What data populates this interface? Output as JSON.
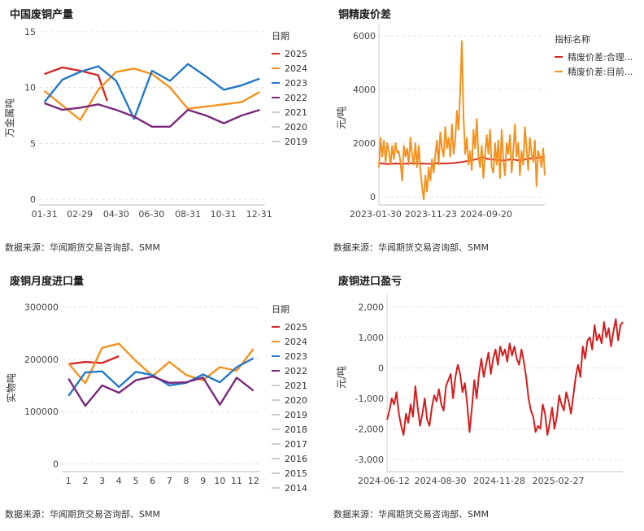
{
  "colors": {
    "c2025": "#d42a2a",
    "c2024": "#f3921f",
    "c2023": "#2478c8",
    "c2022": "#7b2a7b",
    "cOld": "#cccccc",
    "grid": "#e3e3e3",
    "red": "#d21f1f"
  },
  "source_text": "数据来源：华闻期货交易咨询部、SMM",
  "chart_data": [
    {
      "type": "line",
      "title": "中国废铜产量",
      "ylabel": "万金属吨",
      "ylim": [
        -0.5,
        15.5
      ],
      "yticks": [
        "15",
        "10",
        "5",
        "0"
      ],
      "ytick_values": [
        15,
        10,
        5,
        0
      ],
      "xtick_labels": [
        "01-31",
        "02-29",
        "04-30",
        "06-30",
        "08-31",
        "10-31",
        "12-31"
      ],
      "xtick_positions": [
        1,
        2.97,
        5,
        6.97,
        9,
        10.97,
        12.97
      ],
      "xlim": [
        0.7,
        13.3
      ],
      "legend_title": "日期",
      "legend": [
        "2025",
        "2024",
        "2023",
        "2022",
        "2021",
        "2020",
        "2019"
      ],
      "series": [
        {
          "name": "2025",
          "x": [
            1,
            2,
            3,
            4,
            4.5
          ],
          "values": [
            11.2,
            11.8,
            11.5,
            11.1,
            8.8
          ]
        },
        {
          "name": "2024",
          "x": [
            1,
            2,
            3,
            4,
            5,
            6,
            7,
            8,
            9,
            10,
            11,
            12,
            13
          ],
          "values": [
            9.7,
            8.4,
            7.1,
            9.8,
            11.4,
            11.7,
            11.2,
            10,
            8.1,
            8.3,
            8.5,
            8.7,
            9.6
          ]
        },
        {
          "name": "2023",
          "x": [
            1,
            2,
            3,
            4,
            5,
            6,
            7,
            8,
            9,
            10,
            11,
            12,
            13
          ],
          "values": [
            8.7,
            10.7,
            11.4,
            11.9,
            10.6,
            7.2,
            11.5,
            10.6,
            12.1,
            11,
            9.8,
            10.2,
            10.8
          ]
        },
        {
          "name": "2022",
          "x": [
            1,
            2,
            3,
            4,
            5,
            6,
            7,
            8,
            9,
            10,
            11,
            12,
            13
          ],
          "values": [
            8.6,
            8,
            8.2,
            8.5,
            8,
            7.4,
            6.5,
            6.5,
            8,
            7.5,
            6.8,
            7.5,
            8
          ]
        }
      ]
    },
    {
      "type": "line",
      "title": "铜精废价差",
      "ylabel": "元/吨",
      "ylim": [
        -300,
        6300
      ],
      "yticks": [
        "6000",
        "4000",
        "2000",
        "0"
      ],
      "ytick_values": [
        6000,
        4000,
        2000,
        0
      ],
      "xtick_labels": [
        "2023-01-30",
        "2023-11-23",
        "2024-09-20"
      ],
      "xtick_positions": [
        0,
        0.333,
        0.667
      ],
      "legend_title": "指标名称",
      "legend": [
        "精废价差:合理...",
        "精废价差:目前..."
      ],
      "series": [
        {
          "name": "精废价差:合理价差",
          "x": [
            0,
            0.05,
            0.1,
            0.15,
            0.2,
            0.25,
            0.3,
            0.35,
            0.4,
            0.45,
            0.5,
            0.55,
            0.6,
            0.62,
            0.65,
            0.7,
            0.75,
            0.8,
            0.85,
            0.9,
            0.95,
            1
          ],
          "values": [
            1250,
            1220,
            1240,
            1230,
            1250,
            1240,
            1230,
            1250,
            1240,
            1260,
            1300,
            1350,
            1420,
            1500,
            1420,
            1380,
            1350,
            1400,
            1350,
            1420,
            1450,
            1500
          ]
        },
        {
          "name": "精废价差:目前价差",
          "x": [
            0,
            0.01,
            0.02,
            0.03,
            0.04,
            0.05,
            0.06,
            0.07,
            0.08,
            0.09,
            0.1,
            0.11,
            0.12,
            0.13,
            0.14,
            0.15,
            0.16,
            0.17,
            0.18,
            0.19,
            0.2,
            0.21,
            0.22,
            0.23,
            0.24,
            0.25,
            0.26,
            0.27,
            0.28,
            0.29,
            0.3,
            0.31,
            0.32,
            0.33,
            0.34,
            0.35,
            0.36,
            0.37,
            0.38,
            0.39,
            0.4,
            0.41,
            0.42,
            0.43,
            0.44,
            0.45,
            0.46,
            0.47,
            0.48,
            0.49,
            0.5,
            0.51,
            0.52,
            0.53,
            0.54,
            0.55,
            0.56,
            0.57,
            0.58,
            0.59,
            0.6,
            0.61,
            0.62,
            0.63,
            0.64,
            0.65,
            0.66,
            0.67,
            0.68,
            0.69,
            0.7,
            0.71,
            0.72,
            0.73,
            0.74,
            0.75,
            0.76,
            0.77,
            0.78,
            0.79,
            0.8,
            0.81,
            0.82,
            0.83,
            0.84,
            0.85,
            0.86,
            0.87,
            0.88,
            0.89,
            0.9,
            0.91,
            0.92,
            0.93,
            0.94,
            0.95,
            0.96,
            0.97,
            0.98,
            0.99,
            1
          ],
          "values": [
            1100,
            2200,
            1500,
            2100,
            1300,
            2000,
            1700,
            1200,
            1900,
            1400,
            2000,
            1650,
            1700,
            1300,
            600,
            1900,
            1500,
            1800,
            1200,
            2200,
            1600,
            1200,
            2000,
            1100,
            1900,
            1000,
            400,
            -100,
            800,
            200,
            1100,
            600,
            1400,
            900,
            1600,
            2100,
            1200,
            2400,
            1800,
            1500,
            2600,
            1800,
            2200,
            1500,
            2700,
            1600,
            2100,
            3200,
            2500,
            4000,
            5800,
            3000,
            1600,
            2200,
            1200,
            1700,
            1000,
            2500,
            1800,
            2900,
            1500,
            1100,
            1900,
            700,
            1600,
            2300,
            1600,
            2500,
            1100,
            900,
            2000,
            1200,
            2100,
            700,
            2500,
            1400,
            800,
            2000,
            1600,
            2300,
            900,
            1700,
            2700,
            1500,
            2000,
            800,
            1700,
            1200,
            2600,
            1800,
            1000,
            2200,
            1600,
            1300,
            2100,
            400,
            1700,
            1500,
            1100,
            1800,
            800
          ]
        }
      ]
    },
    {
      "type": "line",
      "title": "废铜月度进口量",
      "ylabel": "实物吨",
      "ylim": [
        -15000,
        315000
      ],
      "yticks": [
        "300000",
        "200000",
        "100000",
        "0"
      ],
      "ytick_values": [
        300000,
        200000,
        100000,
        0
      ],
      "xtick_labels": [
        "1",
        "2",
        "3",
        "4",
        "5",
        "6",
        "7",
        "8",
        "9",
        "10",
        "11",
        "12"
      ],
      "xtick_positions": [
        1,
        2,
        3,
        4,
        5,
        6,
        7,
        8,
        9,
        10,
        11,
        12
      ],
      "xlim": [
        0.6,
        12.4
      ],
      "legend_title": "日期",
      "legend": [
        "2025",
        "2024",
        "2023",
        "2022",
        "2021",
        "2020",
        "2019",
        "2018",
        "2017",
        "2016",
        "2015",
        "2014"
      ],
      "series": [
        {
          "name": "2025",
          "x": [
            1,
            2,
            3,
            4
          ],
          "values": [
            191000,
            195000,
            193000,
            206000
          ]
        },
        {
          "name": "2024",
          "x": [
            1,
            2,
            3,
            4,
            5,
            6,
            7,
            8,
            9,
            10,
            11,
            12
          ],
          "values": [
            192000,
            154000,
            222000,
            230000,
            197000,
            168000,
            195000,
            170000,
            160000,
            185000,
            178000,
            220000
          ]
        },
        {
          "name": "2023",
          "x": [
            1,
            2,
            3,
            4,
            5,
            6,
            7,
            8,
            9,
            10,
            11,
            12
          ],
          "values": [
            130000,
            175000,
            177000,
            147000,
            176000,
            170000,
            150000,
            155000,
            171000,
            156000,
            185000,
            202000
          ]
        },
        {
          "name": "2022",
          "x": [
            1,
            2,
            3,
            4,
            5,
            6,
            7,
            8,
            9,
            10,
            11,
            12
          ],
          "values": [
            163000,
            111000,
            150000,
            136000,
            160000,
            167000,
            155000,
            156000,
            165000,
            113000,
            165000,
            140000
          ]
        }
      ]
    },
    {
      "type": "line",
      "title": "废铜进口盈亏",
      "ylabel": "元/吨",
      "ylim": [
        -3400,
        2300
      ],
      "yticks": [
        "2,000",
        "1,000",
        "0",
        "-1,000",
        "-2,000",
        "-3,000"
      ],
      "ytick_values": [
        2000,
        1000,
        0,
        -1000,
        -2000,
        -3000
      ],
      "xtick_labels": [
        "2024-06-12",
        "2024-08-30",
        "2024-11-28",
        "2025-02-27"
      ],
      "xtick_positions": [
        0,
        0.24,
        0.49,
        0.74
      ],
      "series": [
        {
          "name": "废铜进口盈亏",
          "x": [
            0,
            0.01,
            0.02,
            0.03,
            0.04,
            0.05,
            0.06,
            0.07,
            0.08,
            0.09,
            0.1,
            0.11,
            0.12,
            0.13,
            0.14,
            0.15,
            0.16,
            0.17,
            0.18,
            0.19,
            0.2,
            0.21,
            0.22,
            0.23,
            0.24,
            0.25,
            0.26,
            0.27,
            0.28,
            0.29,
            0.3,
            0.31,
            0.32,
            0.33,
            0.34,
            0.35,
            0.36,
            0.37,
            0.38,
            0.39,
            0.4,
            0.41,
            0.42,
            0.43,
            0.44,
            0.45,
            0.46,
            0.47,
            0.48,
            0.49,
            0.5,
            0.51,
            0.52,
            0.53,
            0.54,
            0.55,
            0.56,
            0.57,
            0.58,
            0.59,
            0.6,
            0.61,
            0.62,
            0.63,
            0.64,
            0.65,
            0.66,
            0.67,
            0.68,
            0.69,
            0.7,
            0.71,
            0.72,
            0.73,
            0.74,
            0.75,
            0.76,
            0.77,
            0.78,
            0.79,
            0.8,
            0.81,
            0.82,
            0.83,
            0.84,
            0.85,
            0.86,
            0.87,
            0.88,
            0.89,
            0.9,
            0.91,
            0.92,
            0.93,
            0.94,
            0.95,
            0.96,
            0.97,
            0.98,
            0.99,
            1
          ],
          "values": [
            -1700,
            -1400,
            -1000,
            -1200,
            -800,
            -1500,
            -1900,
            -2200,
            -1500,
            -1800,
            -1200,
            -1600,
            -600,
            -1300,
            -1900,
            -1500,
            -1000,
            -1700,
            -1900,
            -1300,
            -900,
            -1100,
            -700,
            -1200,
            -1400,
            -600,
            -400,
            -200,
            -1000,
            -300,
            100,
            -200,
            -800,
            -500,
            -1200,
            -2100,
            -1300,
            -400,
            -1000,
            -200,
            300,
            -300,
            100,
            500,
            -200,
            300,
            600,
            100,
            700,
            400,
            600,
            200,
            800,
            400,
            700,
            300,
            100,
            600,
            200,
            -300,
            -1000,
            -1400,
            -1600,
            -2100,
            -1900,
            -2000,
            -1200,
            -1500,
            -2200,
            -1800,
            -1300,
            -2000,
            -1600,
            -900,
            -1200,
            -1400,
            -800,
            -1100,
            -1500,
            -900,
            -300,
            100,
            -300,
            700,
            300,
            900,
            1000,
            600,
            1400,
            900,
            1100,
            800,
            1500,
            1000,
            1300,
            700,
            1200,
            1600,
            900,
            1400,
            1500
          ]
        }
      ]
    }
  ]
}
